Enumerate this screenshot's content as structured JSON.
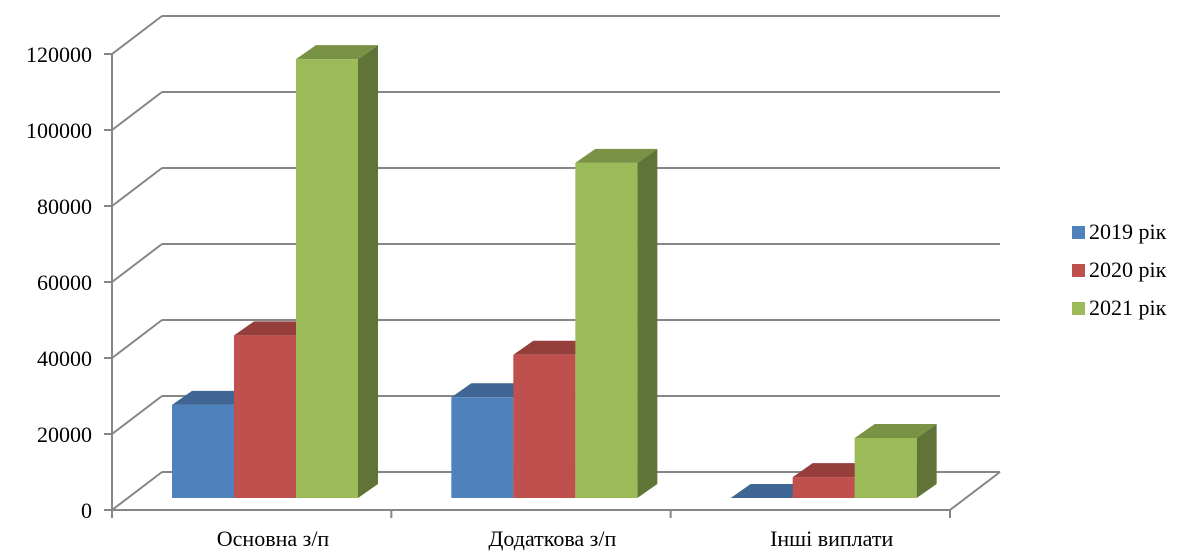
{
  "chart_data": {
    "type": "bar",
    "style": "3d-clustered-column",
    "title": "",
    "xlabel": "",
    "ylabel": "",
    "categories": [
      "Основна з/п",
      "Додаткова з/п",
      "Інші виплати"
    ],
    "series": [
      {
        "name": "2019 рік",
        "color": "#4F81BD",
        "values": [
          24500,
          26500,
          0
        ]
      },
      {
        "name": "2020 рік",
        "color": "#C0504D",
        "values": [
          42800,
          37700,
          5500
        ]
      },
      {
        "name": "2021 рік",
        "color": "#9BBB59",
        "values": [
          115500,
          88200,
          15800
        ]
      }
    ],
    "ylim": [
      0,
      120000
    ],
    "yticks": [
      0,
      20000,
      40000,
      60000,
      80000,
      100000,
      120000
    ],
    "ytick_labels": [
      "0",
      "20000",
      "40000",
      "60000",
      "80000",
      "100000",
      "120000"
    ],
    "grid": true,
    "legend_position": "right"
  }
}
